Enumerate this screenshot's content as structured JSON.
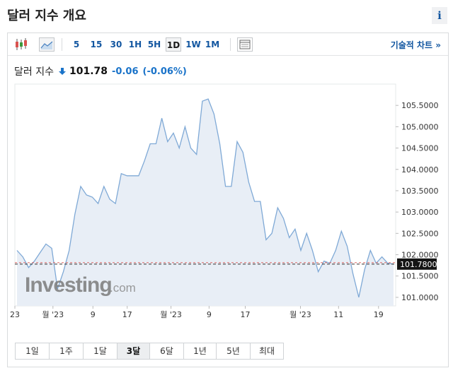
{
  "header": {
    "title": "달러 지수 개요",
    "info_glyph": "i"
  },
  "toolbar": {
    "timeframes": [
      "5",
      "15",
      "30",
      "1H",
      "5H",
      "1D",
      "1W",
      "1M"
    ],
    "active_timeframe": "1D",
    "tech_chart_label": "기술적 차트 »",
    "icons": [
      "candlestick-icon",
      "area-chart-icon",
      "table-view-icon"
    ]
  },
  "quote": {
    "name": "달러 지수",
    "direction": "down",
    "price": "101.78",
    "change": "-0.06",
    "change_pct": "(-0.06%)"
  },
  "colors": {
    "accent": "#1256a0",
    "line": "#7fa9d6",
    "area_fill": "#e8eef6",
    "down": "#1a73c9",
    "last_price_bg": "#141414"
  },
  "watermark": {
    "main": "Investing",
    "suffix": ".com"
  },
  "chart_data": {
    "type": "area",
    "y_ticks": [
      "105.5000",
      "105.0000",
      "104.5000",
      "104.0000",
      "103.5000",
      "103.0000",
      "102.5000",
      "102.0000",
      "101.5000",
      "101.0000"
    ],
    "ylim": [
      100.8,
      106.0
    ],
    "x_tick_labels": [
      "23",
      "월 '23",
      "9",
      "17",
      "월 '23",
      "9",
      "17",
      "월 '23",
      "11",
      "19"
    ],
    "last_price_label": "101.7800",
    "last_price": 101.78,
    "values": [
      102.1,
      101.95,
      101.7,
      101.85,
      102.05,
      102.25,
      102.15,
      101.2,
      101.6,
      102.1,
      102.95,
      103.6,
      103.4,
      103.35,
      103.2,
      103.6,
      103.3,
      103.2,
      103.9,
      103.85,
      103.85,
      103.85,
      104.2,
      104.6,
      104.6,
      105.2,
      104.65,
      104.85,
      104.5,
      105.0,
      104.5,
      104.35,
      105.6,
      105.65,
      105.3,
      104.6,
      103.6,
      103.6,
      104.65,
      104.4,
      103.7,
      103.25,
      103.25,
      102.35,
      102.5,
      103.1,
      102.85,
      102.4,
      102.6,
      102.1,
      102.5,
      102.1,
      101.6,
      101.85,
      101.8,
      102.1,
      102.55,
      102.2,
      101.55,
      101.0,
      101.65,
      102.1,
      101.8,
      101.95,
      101.8,
      101.78
    ]
  },
  "range_buttons": [
    "1일",
    "1주",
    "1달",
    "3달",
    "6달",
    "1년",
    "5년",
    "최대"
  ],
  "active_range": "3달"
}
